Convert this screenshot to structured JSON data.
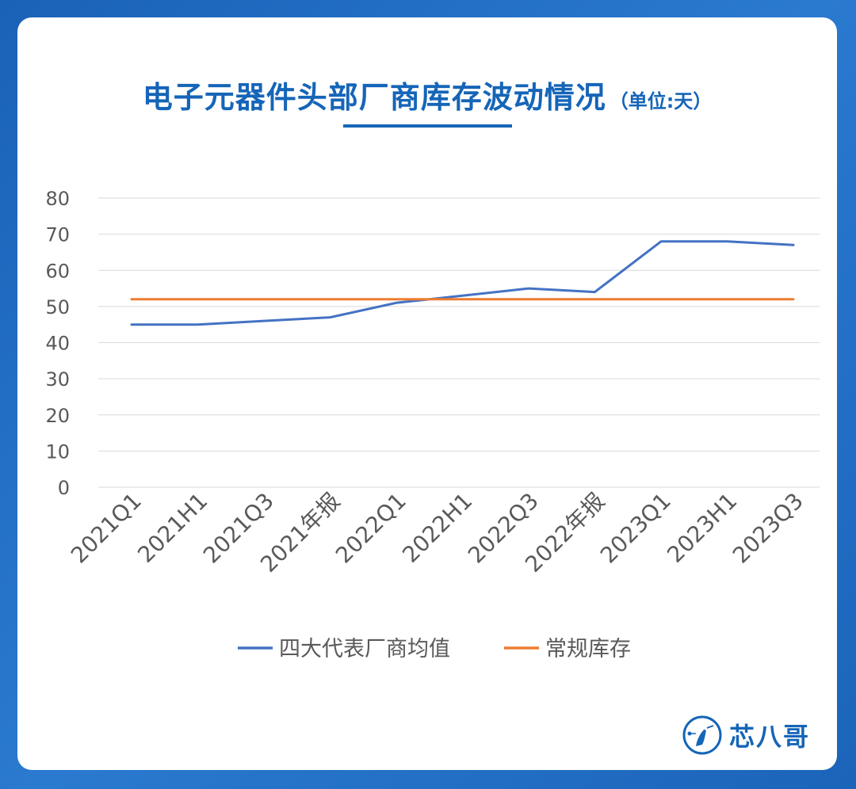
{
  "header": {
    "title": "电子元器件头部厂商库存波动情况",
    "unit": "（单位:天）"
  },
  "brand": {
    "name": "芯八哥",
    "logo_icon": "bird-logo-icon"
  },
  "colors": {
    "background": "#1f6cc0",
    "title": "#1565b8",
    "series_avg": "#4472c4",
    "series_normal": "#ed7d31",
    "grid": "#d9d9d9"
  },
  "chart_data": {
    "type": "line",
    "title": "电子元器件头部厂商库存波动情况",
    "xlabel": "",
    "ylabel": "",
    "ylim": [
      0,
      80
    ],
    "yticks": [
      0,
      10,
      20,
      30,
      40,
      50,
      60,
      70,
      80
    ],
    "grid": true,
    "legend": "bottom",
    "categories": [
      "2021Q1",
      "2021H1",
      "2021Q3",
      "2021年报",
      "2022Q1",
      "2022H1",
      "2022Q3",
      "2022年报",
      "2023Q1",
      "2023H1",
      "2023Q3"
    ],
    "series": [
      {
        "name": "四大代表厂商均值",
        "color": "#4472c4",
        "values": [
          45,
          45,
          46,
          47,
          51,
          53,
          55,
          54,
          68,
          68,
          67
        ]
      },
      {
        "name": "常规库存",
        "color": "#ed7d31",
        "values": [
          52,
          52,
          52,
          52,
          52,
          52,
          52,
          52,
          52,
          52,
          52
        ]
      }
    ]
  }
}
